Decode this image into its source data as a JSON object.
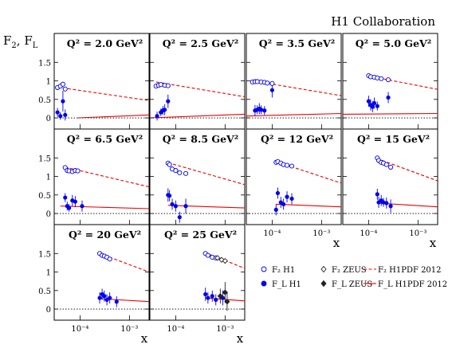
{
  "header": {
    "collaboration": "H1 Collaboration",
    "y_axis_label": "F",
    "y_axis_label_sub1": "2",
    "y_axis_label_sep": ", F",
    "y_axis_label_sub2": "L",
    "x_axis_label": "x"
  },
  "legend": {
    "f2_h1": "F₂ H1",
    "f2_zeus": "F₂ ZEUS",
    "f2_h1pdf": "F₂ H1PDF 2012",
    "fl_h1": "F_L H1",
    "fl_zeus": "F_L ZEUS",
    "fl_h1pdf": "F_L H1PDF 2012"
  },
  "colors": {
    "h1": "#0000ee",
    "zeus": "#222222",
    "pdf": "#ee0000",
    "zero_line": "#000000"
  },
  "chart_data": {
    "type": "scatter",
    "x_scale": "log",
    "xlim": [
      3e-05,
      0.0025
    ],
    "ylim": [
      -0.3,
      1.85
    ],
    "y_ticks": [
      "0",
      "0.5",
      "1",
      "1.5"
    ],
    "x_ticks": [
      "10⁻⁴",
      "10⁻³"
    ],
    "panels": [
      {
        "q2_label": "Q² = 2.0 GeV²",
        "f2_h1": [
          {
            "x": 3.5e-05,
            "y": 0.82,
            "e": 0.03
          },
          {
            "x": 4e-05,
            "y": 0.86,
            "e": 0.03
          },
          {
            "x": 4.5e-05,
            "y": 0.91,
            "e": 0.03
          },
          {
            "x": 5e-05,
            "y": 0.78,
            "e": 0.03
          }
        ],
        "fl_h1": [
          {
            "x": 3.5e-05,
            "y": 0.15,
            "e": 0.12
          },
          {
            "x": 4e-05,
            "y": 0.05,
            "e": 0.1
          },
          {
            "x": 4.5e-05,
            "y": 0.45,
            "e": 0.28
          },
          {
            "x": 5e-05,
            "y": 0.08,
            "e": 0.15
          }
        ],
        "f2_zeus": [],
        "fl_zeus": [],
        "f2_pdf": [
          {
            "x": 3.5e-05,
            "y": 0.83
          },
          {
            "x": 0.0025,
            "y": 0.47
          }
        ],
        "fl_pdf": [
          {
            "x": 9e-05,
            "y": 0.0
          },
          {
            "x": 0.0025,
            "y": 0.08
          }
        ]
      },
      {
        "q2_label": "Q² = 2.5 GeV²",
        "f2_h1": [
          {
            "x": 4e-05,
            "y": 0.86,
            "e": 0.03
          },
          {
            "x": 4.5e-05,
            "y": 0.88,
            "e": 0.03
          },
          {
            "x": 5e-05,
            "y": 0.9,
            "e": 0.03
          },
          {
            "x": 6e-05,
            "y": 0.88,
            "e": 0.03
          },
          {
            "x": 7e-05,
            "y": 0.87,
            "e": 0.03
          }
        ],
        "fl_h1": [
          {
            "x": 4.2e-05,
            "y": 0.05,
            "e": 0.12
          },
          {
            "x": 5e-05,
            "y": 0.15,
            "e": 0.1
          },
          {
            "x": 5.5e-05,
            "y": 0.2,
            "e": 0.12
          },
          {
            "x": 6e-05,
            "y": 0.22,
            "e": 0.15
          },
          {
            "x": 7e-05,
            "y": 0.45,
            "e": 0.18
          }
        ],
        "f2_zeus": [],
        "fl_zeus": [],
        "f2_pdf": [
          {
            "x": 4e-05,
            "y": 0.97
          },
          {
            "x": 0.0025,
            "y": 0.57
          }
        ],
        "fl_pdf": [
          {
            "x": 3e-05,
            "y": 0.0
          },
          {
            "x": 0.0025,
            "y": 0.1
          }
        ]
      },
      {
        "q2_label": "Q² = 3.5 GeV²",
        "f2_h1": [
          {
            "x": 4e-05,
            "y": 0.97,
            "e": 0.03
          },
          {
            "x": 4.5e-05,
            "y": 0.98,
            "e": 0.03
          },
          {
            "x": 5e-05,
            "y": 0.98,
            "e": 0.03
          },
          {
            "x": 6e-05,
            "y": 0.97,
            "e": 0.03
          },
          {
            "x": 7e-05,
            "y": 0.96,
            "e": 0.03
          },
          {
            "x": 8e-05,
            "y": 0.94,
            "e": 0.03
          },
          {
            "x": 0.0001,
            "y": 0.93,
            "e": 0.03
          }
        ],
        "fl_h1": [
          {
            "x": 4.5e-05,
            "y": 0.2,
            "e": 0.15
          },
          {
            "x": 5e-05,
            "y": 0.22,
            "e": 0.12
          },
          {
            "x": 5.5e-05,
            "y": 0.25,
            "e": 0.15
          },
          {
            "x": 6e-05,
            "y": 0.22,
            "e": 0.12
          },
          {
            "x": 7e-05,
            "y": 0.2,
            "e": 0.12
          },
          {
            "x": 0.0001,
            "y": 0.75,
            "e": 0.2
          }
        ],
        "f2_zeus": [],
        "fl_zeus": [],
        "f2_pdf": [
          {
            "x": 4e-05,
            "y": 1.0
          },
          {
            "x": 0.0025,
            "y": 0.6
          }
        ],
        "fl_pdf": [
          {
            "x": 3e-05,
            "y": 0.05
          },
          {
            "x": 0.0025,
            "y": 0.12
          }
        ]
      },
      {
        "q2_label": "Q² = 5.0 GeV²",
        "f2_h1": [
          {
            "x": 0.0001,
            "y": 1.14,
            "e": 0.03
          },
          {
            "x": 0.00011,
            "y": 1.11,
            "e": 0.03
          },
          {
            "x": 0.00013,
            "y": 1.1,
            "e": 0.03
          },
          {
            "x": 0.00015,
            "y": 1.08,
            "e": 0.03
          },
          {
            "x": 0.00018,
            "y": 1.06,
            "e": 0.03
          },
          {
            "x": 0.00025,
            "y": 1.03,
            "e": 0.03
          }
        ],
        "fl_h1": [
          {
            "x": 0.0001,
            "y": 0.45,
            "e": 0.15
          },
          {
            "x": 0.00011,
            "y": 0.35,
            "e": 0.15
          },
          {
            "x": 0.00012,
            "y": 0.3,
            "e": 0.15
          },
          {
            "x": 0.00013,
            "y": 0.4,
            "e": 0.15
          },
          {
            "x": 0.00015,
            "y": 0.32,
            "e": 0.12
          },
          {
            "x": 0.00025,
            "y": 0.55,
            "e": 0.15
          }
        ],
        "f2_zeus": [],
        "fl_zeus": [],
        "f2_pdf": [
          {
            "x": 0.0001,
            "y": 1.13
          },
          {
            "x": 0.0025,
            "y": 0.77
          }
        ],
        "fl_pdf": [
          {
            "x": 3e-05,
            "y": 0.1
          },
          {
            "x": 0.0025,
            "y": 0.12
          }
        ]
      },
      {
        "q2_label": "Q² = 6.5 GeV²",
        "f2_h1": [
          {
            "x": 5e-05,
            "y": 1.24,
            "e": 0.03
          },
          {
            "x": 5.5e-05,
            "y": 1.16,
            "e": 0.03
          },
          {
            "x": 6e-05,
            "y": 1.15,
            "e": 0.03
          },
          {
            "x": 7e-05,
            "y": 1.13,
            "e": 0.03
          },
          {
            "x": 8e-05,
            "y": 1.16,
            "e": 0.03
          },
          {
            "x": 9e-05,
            "y": 1.15,
            "e": 0.03
          }
        ],
        "fl_h1": [
          {
            "x": 5e-05,
            "y": 0.43,
            "e": 0.12
          },
          {
            "x": 5.5e-05,
            "y": 0.2,
            "e": 0.12
          },
          {
            "x": 6e-05,
            "y": 0.15,
            "e": 0.1
          },
          {
            "x": 7e-05,
            "y": 0.35,
            "e": 0.15
          },
          {
            "x": 8e-05,
            "y": 0.32,
            "e": 0.15
          },
          {
            "x": 0.00011,
            "y": 0.2,
            "e": 0.15
          }
        ],
        "f2_zeus": [],
        "fl_zeus": [],
        "f2_pdf": [
          {
            "x": 5e-05,
            "y": 1.25
          },
          {
            "x": 0.0025,
            "y": 0.72
          }
        ],
        "fl_pdf": [
          {
            "x": 4e-05,
            "y": 0.2
          },
          {
            "x": 0.0025,
            "y": 0.13
          }
        ]
      },
      {
        "q2_label": "Q² = 8.5 GeV²",
        "f2_h1": [
          {
            "x": 7e-05,
            "y": 1.36,
            "e": 0.03
          },
          {
            "x": 7.5e-05,
            "y": 1.32,
            "e": 0.03
          },
          {
            "x": 8.5e-05,
            "y": 1.2,
            "e": 0.03
          },
          {
            "x": 0.0001,
            "y": 1.16,
            "e": 0.03
          },
          {
            "x": 0.00012,
            "y": 1.1,
            "e": 0.03
          },
          {
            "x": 0.00016,
            "y": 1.08,
            "e": 0.03
          }
        ],
        "fl_h1": [
          {
            "x": 7e-05,
            "y": 0.5,
            "e": 0.18
          },
          {
            "x": 7.5e-05,
            "y": 0.48,
            "e": 0.15
          },
          {
            "x": 8.5e-05,
            "y": 0.25,
            "e": 0.15
          },
          {
            "x": 0.0001,
            "y": 0.2,
            "e": 0.15
          },
          {
            "x": 0.00012,
            "y": -0.1,
            "e": 0.15
          },
          {
            "x": 0.00016,
            "y": 0.2,
            "e": 0.2
          }
        ],
        "f2_zeus": [],
        "fl_zeus": [],
        "f2_pdf": [
          {
            "x": 7e-05,
            "y": 1.37
          },
          {
            "x": 0.0025,
            "y": 0.78
          }
        ],
        "fl_pdf": [
          {
            "x": 7e-05,
            "y": 0.22
          },
          {
            "x": 0.0025,
            "y": 0.15
          }
        ]
      },
      {
        "q2_label": "Q² = 12 GeV²",
        "f2_h1": [
          {
            "x": 0.00012,
            "y": 1.38,
            "e": 0.03
          },
          {
            "x": 0.00013,
            "y": 1.4,
            "e": 0.03
          },
          {
            "x": 0.00015,
            "y": 1.36,
            "e": 0.03
          },
          {
            "x": 0.00017,
            "y": 1.32,
            "e": 0.03
          },
          {
            "x": 0.0002,
            "y": 1.3,
            "e": 0.03
          },
          {
            "x": 0.00025,
            "y": 1.28,
            "e": 0.03
          }
        ],
        "fl_h1": [
          {
            "x": 0.00012,
            "y": 0.1,
            "e": 0.15
          },
          {
            "x": 0.00013,
            "y": 0.55,
            "e": 0.15
          },
          {
            "x": 0.00015,
            "y": 0.3,
            "e": 0.15
          },
          {
            "x": 0.00017,
            "y": 0.25,
            "e": 0.15
          },
          {
            "x": 0.0002,
            "y": 0.45,
            "e": 0.15
          },
          {
            "x": 0.00025,
            "y": 0.4,
            "e": 0.15
          }
        ],
        "f2_zeus": [],
        "fl_zeus": [],
        "f2_pdf": [
          {
            "x": 0.00012,
            "y": 1.4
          },
          {
            "x": 0.0025,
            "y": 0.82
          }
        ],
        "fl_pdf": [
          {
            "x": 0.00012,
            "y": 0.25
          },
          {
            "x": 0.0025,
            "y": 0.18
          }
        ]
      },
      {
        "q2_label": "Q² = 15 GeV²",
        "f2_h1": [
          {
            "x": 0.00015,
            "y": 1.5,
            "e": 0.03
          },
          {
            "x": 0.00016,
            "y": 1.43,
            "e": 0.03
          },
          {
            "x": 0.00018,
            "y": 1.38,
            "e": 0.03
          },
          {
            "x": 0.0002,
            "y": 1.36,
            "e": 0.03
          },
          {
            "x": 0.00023,
            "y": 1.32,
            "e": 0.03
          },
          {
            "x": 0.00028,
            "y": 1.25,
            "e": 0.03
          }
        ],
        "fl_h1": [
          {
            "x": 0.00015,
            "y": 0.52,
            "e": 0.15
          },
          {
            "x": 0.00016,
            "y": 0.3,
            "e": 0.15
          },
          {
            "x": 0.00018,
            "y": 0.35,
            "e": 0.15
          },
          {
            "x": 0.0002,
            "y": 0.3,
            "e": 0.12
          },
          {
            "x": 0.00023,
            "y": 0.28,
            "e": 0.15
          },
          {
            "x": 0.00028,
            "y": 0.2,
            "e": 0.18
          }
        ],
        "f2_zeus": [],
        "fl_zeus": [],
        "f2_pdf": [
          {
            "x": 0.00015,
            "y": 1.48
          },
          {
            "x": 0.0025,
            "y": 0.88
          }
        ],
        "fl_pdf": [
          {
            "x": 0.00015,
            "y": 0.28
          },
          {
            "x": 0.0025,
            "y": 0.18
          }
        ]
      },
      {
        "q2_label": "Q² = 20 GeV²",
        "f2_h1": [
          {
            "x": 0.00025,
            "y": 1.5,
            "e": 0.03
          },
          {
            "x": 0.00028,
            "y": 1.45,
            "e": 0.03
          },
          {
            "x": 0.00031,
            "y": 1.43,
            "e": 0.03
          },
          {
            "x": 0.00035,
            "y": 1.4,
            "e": 0.03
          },
          {
            "x": 0.0004,
            "y": 1.35,
            "e": 0.03
          }
        ],
        "fl_h1": [
          {
            "x": 0.00025,
            "y": 0.3,
            "e": 0.15
          },
          {
            "x": 0.00028,
            "y": 0.4,
            "e": 0.15
          },
          {
            "x": 0.00031,
            "y": 0.35,
            "e": 0.15
          },
          {
            "x": 0.00035,
            "y": 0.25,
            "e": 0.15
          },
          {
            "x": 0.0004,
            "y": 0.3,
            "e": 0.15
          },
          {
            "x": 0.00055,
            "y": 0.2,
            "e": 0.15
          }
        ],
        "f2_zeus": [],
        "fl_zeus": [],
        "f2_pdf": [
          {
            "x": 0.00025,
            "y": 1.5
          },
          {
            "x": 0.0025,
            "y": 1.0
          }
        ],
        "fl_pdf": [
          {
            "x": 0.00025,
            "y": 0.28
          },
          {
            "x": 0.0025,
            "y": 0.2
          }
        ]
      },
      {
        "q2_label": "Q² = 25 GeV²",
        "f2_h1": [
          {
            "x": 0.0004,
            "y": 1.5,
            "e": 0.03
          },
          {
            "x": 0.00045,
            "y": 1.45,
            "e": 0.03
          },
          {
            "x": 0.00055,
            "y": 1.4,
            "e": 0.03
          },
          {
            "x": 0.00065,
            "y": 1.38,
            "e": 0.03
          }
        ],
        "fl_h1": [
          {
            "x": 0.0004,
            "y": 0.4,
            "e": 0.18
          },
          {
            "x": 0.00045,
            "y": 0.3,
            "e": 0.15
          },
          {
            "x": 0.00055,
            "y": 0.35,
            "e": 0.15
          },
          {
            "x": 0.00065,
            "y": 0.25,
            "e": 0.15
          },
          {
            "x": 0.0009,
            "y": 0.3,
            "e": 0.2
          }
        ],
        "f2_zeus": [
          {
            "x": 0.0007,
            "y": 1.38,
            "e": 0.03
          },
          {
            "x": 0.00085,
            "y": 1.33,
            "e": 0.03
          },
          {
            "x": 0.001,
            "y": 1.3,
            "e": 0.03
          }
        ],
        "fl_zeus": [
          {
            "x": 0.0008,
            "y": 0.35,
            "e": 0.2
          },
          {
            "x": 0.001,
            "y": 0.45,
            "e": 0.28
          },
          {
            "x": 0.0011,
            "y": 0.2,
            "e": 0.25
          }
        ],
        "f2_pdf": [
          {
            "x": 0.0004,
            "y": 1.52
          },
          {
            "x": 0.0025,
            "y": 1.1
          }
        ],
        "fl_pdf": [
          {
            "x": 0.0004,
            "y": 0.3
          },
          {
            "x": 0.0025,
            "y": 0.22
          }
        ]
      }
    ]
  }
}
